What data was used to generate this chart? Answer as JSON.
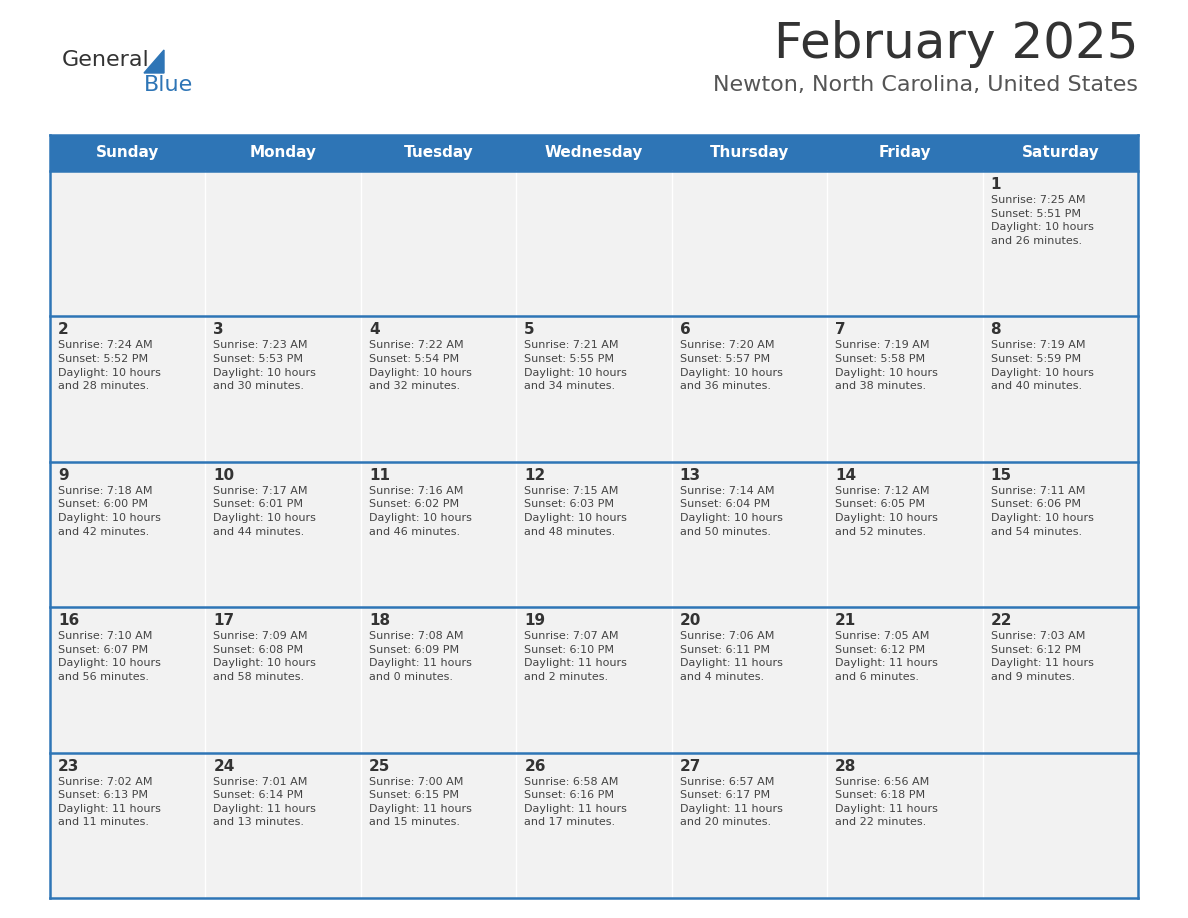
{
  "title": "February 2025",
  "subtitle": "Newton, North Carolina, United States",
  "header_bg": "#2E75B6",
  "header_text_color": "#FFFFFF",
  "cell_bg": "#F2F2F2",
  "day_text_color": "#333333",
  "info_text_color": "#444444",
  "border_color": "#2E75B6",
  "days_of_week": [
    "Sunday",
    "Monday",
    "Tuesday",
    "Wednesday",
    "Thursday",
    "Friday",
    "Saturday"
  ],
  "weeks": [
    [
      {
        "day": null,
        "info": null
      },
      {
        "day": null,
        "info": null
      },
      {
        "day": null,
        "info": null
      },
      {
        "day": null,
        "info": null
      },
      {
        "day": null,
        "info": null
      },
      {
        "day": null,
        "info": null
      },
      {
        "day": 1,
        "info": "Sunrise: 7:25 AM\nSunset: 5:51 PM\nDaylight: 10 hours\nand 26 minutes."
      }
    ],
    [
      {
        "day": 2,
        "info": "Sunrise: 7:24 AM\nSunset: 5:52 PM\nDaylight: 10 hours\nand 28 minutes."
      },
      {
        "day": 3,
        "info": "Sunrise: 7:23 AM\nSunset: 5:53 PM\nDaylight: 10 hours\nand 30 minutes."
      },
      {
        "day": 4,
        "info": "Sunrise: 7:22 AM\nSunset: 5:54 PM\nDaylight: 10 hours\nand 32 minutes."
      },
      {
        "day": 5,
        "info": "Sunrise: 7:21 AM\nSunset: 5:55 PM\nDaylight: 10 hours\nand 34 minutes."
      },
      {
        "day": 6,
        "info": "Sunrise: 7:20 AM\nSunset: 5:57 PM\nDaylight: 10 hours\nand 36 minutes."
      },
      {
        "day": 7,
        "info": "Sunrise: 7:19 AM\nSunset: 5:58 PM\nDaylight: 10 hours\nand 38 minutes."
      },
      {
        "day": 8,
        "info": "Sunrise: 7:19 AM\nSunset: 5:59 PM\nDaylight: 10 hours\nand 40 minutes."
      }
    ],
    [
      {
        "day": 9,
        "info": "Sunrise: 7:18 AM\nSunset: 6:00 PM\nDaylight: 10 hours\nand 42 minutes."
      },
      {
        "day": 10,
        "info": "Sunrise: 7:17 AM\nSunset: 6:01 PM\nDaylight: 10 hours\nand 44 minutes."
      },
      {
        "day": 11,
        "info": "Sunrise: 7:16 AM\nSunset: 6:02 PM\nDaylight: 10 hours\nand 46 minutes."
      },
      {
        "day": 12,
        "info": "Sunrise: 7:15 AM\nSunset: 6:03 PM\nDaylight: 10 hours\nand 48 minutes."
      },
      {
        "day": 13,
        "info": "Sunrise: 7:14 AM\nSunset: 6:04 PM\nDaylight: 10 hours\nand 50 minutes."
      },
      {
        "day": 14,
        "info": "Sunrise: 7:12 AM\nSunset: 6:05 PM\nDaylight: 10 hours\nand 52 minutes."
      },
      {
        "day": 15,
        "info": "Sunrise: 7:11 AM\nSunset: 6:06 PM\nDaylight: 10 hours\nand 54 minutes."
      }
    ],
    [
      {
        "day": 16,
        "info": "Sunrise: 7:10 AM\nSunset: 6:07 PM\nDaylight: 10 hours\nand 56 minutes."
      },
      {
        "day": 17,
        "info": "Sunrise: 7:09 AM\nSunset: 6:08 PM\nDaylight: 10 hours\nand 58 minutes."
      },
      {
        "day": 18,
        "info": "Sunrise: 7:08 AM\nSunset: 6:09 PM\nDaylight: 11 hours\nand 0 minutes."
      },
      {
        "day": 19,
        "info": "Sunrise: 7:07 AM\nSunset: 6:10 PM\nDaylight: 11 hours\nand 2 minutes."
      },
      {
        "day": 20,
        "info": "Sunrise: 7:06 AM\nSunset: 6:11 PM\nDaylight: 11 hours\nand 4 minutes."
      },
      {
        "day": 21,
        "info": "Sunrise: 7:05 AM\nSunset: 6:12 PM\nDaylight: 11 hours\nand 6 minutes."
      },
      {
        "day": 22,
        "info": "Sunrise: 7:03 AM\nSunset: 6:12 PM\nDaylight: 11 hours\nand 9 minutes."
      }
    ],
    [
      {
        "day": 23,
        "info": "Sunrise: 7:02 AM\nSunset: 6:13 PM\nDaylight: 11 hours\nand 11 minutes."
      },
      {
        "day": 24,
        "info": "Sunrise: 7:01 AM\nSunset: 6:14 PM\nDaylight: 11 hours\nand 13 minutes."
      },
      {
        "day": 25,
        "info": "Sunrise: 7:00 AM\nSunset: 6:15 PM\nDaylight: 11 hours\nand 15 minutes."
      },
      {
        "day": 26,
        "info": "Sunrise: 6:58 AM\nSunset: 6:16 PM\nDaylight: 11 hours\nand 17 minutes."
      },
      {
        "day": 27,
        "info": "Sunrise: 6:57 AM\nSunset: 6:17 PM\nDaylight: 11 hours\nand 20 minutes."
      },
      {
        "day": 28,
        "info": "Sunrise: 6:56 AM\nSunset: 6:18 PM\nDaylight: 11 hours\nand 22 minutes."
      },
      {
        "day": null,
        "info": null
      }
    ]
  ],
  "logo_general_color": "#333333",
  "logo_blue_color": "#2E75B6",
  "logo_triangle_color": "#2E75B6",
  "title_color": "#333333",
  "subtitle_color": "#555555",
  "title_fontsize": 36,
  "subtitle_fontsize": 16,
  "header_fontsize": 11,
  "day_num_fontsize": 11,
  "info_fontsize": 8
}
